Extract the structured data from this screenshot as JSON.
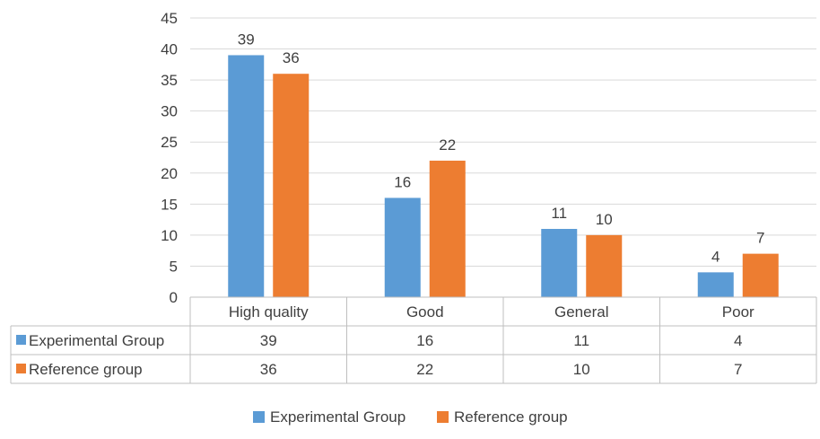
{
  "chart_data": {
    "type": "bar",
    "title": "",
    "xlabel": "",
    "ylabel": "",
    "categories": [
      "High quality",
      "Good",
      "General",
      "Poor"
    ],
    "series": [
      {
        "name": "Experimental Group",
        "color": "#5B9BD5",
        "values": [
          39,
          16,
          11,
          4
        ]
      },
      {
        "name": "Reference group",
        "color": "#ED7D31",
        "values": [
          36,
          22,
          10,
          7
        ]
      }
    ],
    "ylim": [
      0,
      45
    ],
    "yticks": [
      "0",
      "5",
      "10",
      "15",
      "20",
      "25",
      "30",
      "35",
      "40",
      "45"
    ],
    "grid": true,
    "data_labels": true,
    "data_table": true,
    "legend_position": "bottom"
  }
}
